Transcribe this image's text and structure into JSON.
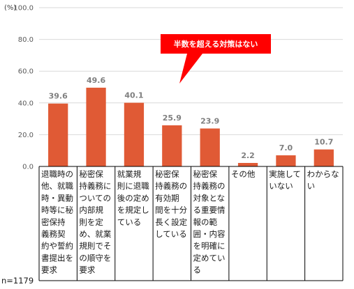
{
  "chart_data": {
    "type": "bar",
    "unit": "(%)",
    "ylim": [
      0,
      100
    ],
    "yticks": [
      "0.0",
      "20.0",
      "40.0",
      "60.0",
      "80.0",
      "100.0"
    ],
    "grid": true,
    "bar_color": "#e05a35",
    "categories": [
      [
        "退職時の",
        "他、就職",
        "時・異動",
        "時等に秘",
        "密保持",
        "義務契",
        "約や誓約",
        "書提出を",
        "要求"
      ],
      [
        "秘密保",
        "持義務に",
        "ついての",
        "内部規",
        "則を定",
        "め、就業",
        "規則でそ",
        "の順守を",
        "要求"
      ],
      [
        "就業規",
        "則に退職",
        "後の定め",
        "を規定し",
        "ている"
      ],
      [
        "秘密保",
        "持義務の",
        "有効期",
        "間を十分",
        "長く設定",
        "している"
      ],
      [
        "秘密保",
        "持義務の",
        "対象とな",
        "る重要情",
        "報の範",
        "囲・内容",
        "を明確に",
        "定めてい",
        "る"
      ],
      [
        "その他"
      ],
      [
        "実施して",
        "いない"
      ],
      [
        "わからな",
        "い"
      ]
    ],
    "values": [
      39.6,
      49.6,
      40.1,
      25.9,
      23.9,
      2.2,
      7.0,
      10.7
    ],
    "value_labels": [
      "39.6",
      "49.6",
      "40.1",
      "25.9",
      "23.9",
      "2.2",
      "7.0",
      "10.7"
    ],
    "annotation": "半数を超える対策はない",
    "annotation_color": "#ff0000",
    "sample_size": "n=1179"
  }
}
